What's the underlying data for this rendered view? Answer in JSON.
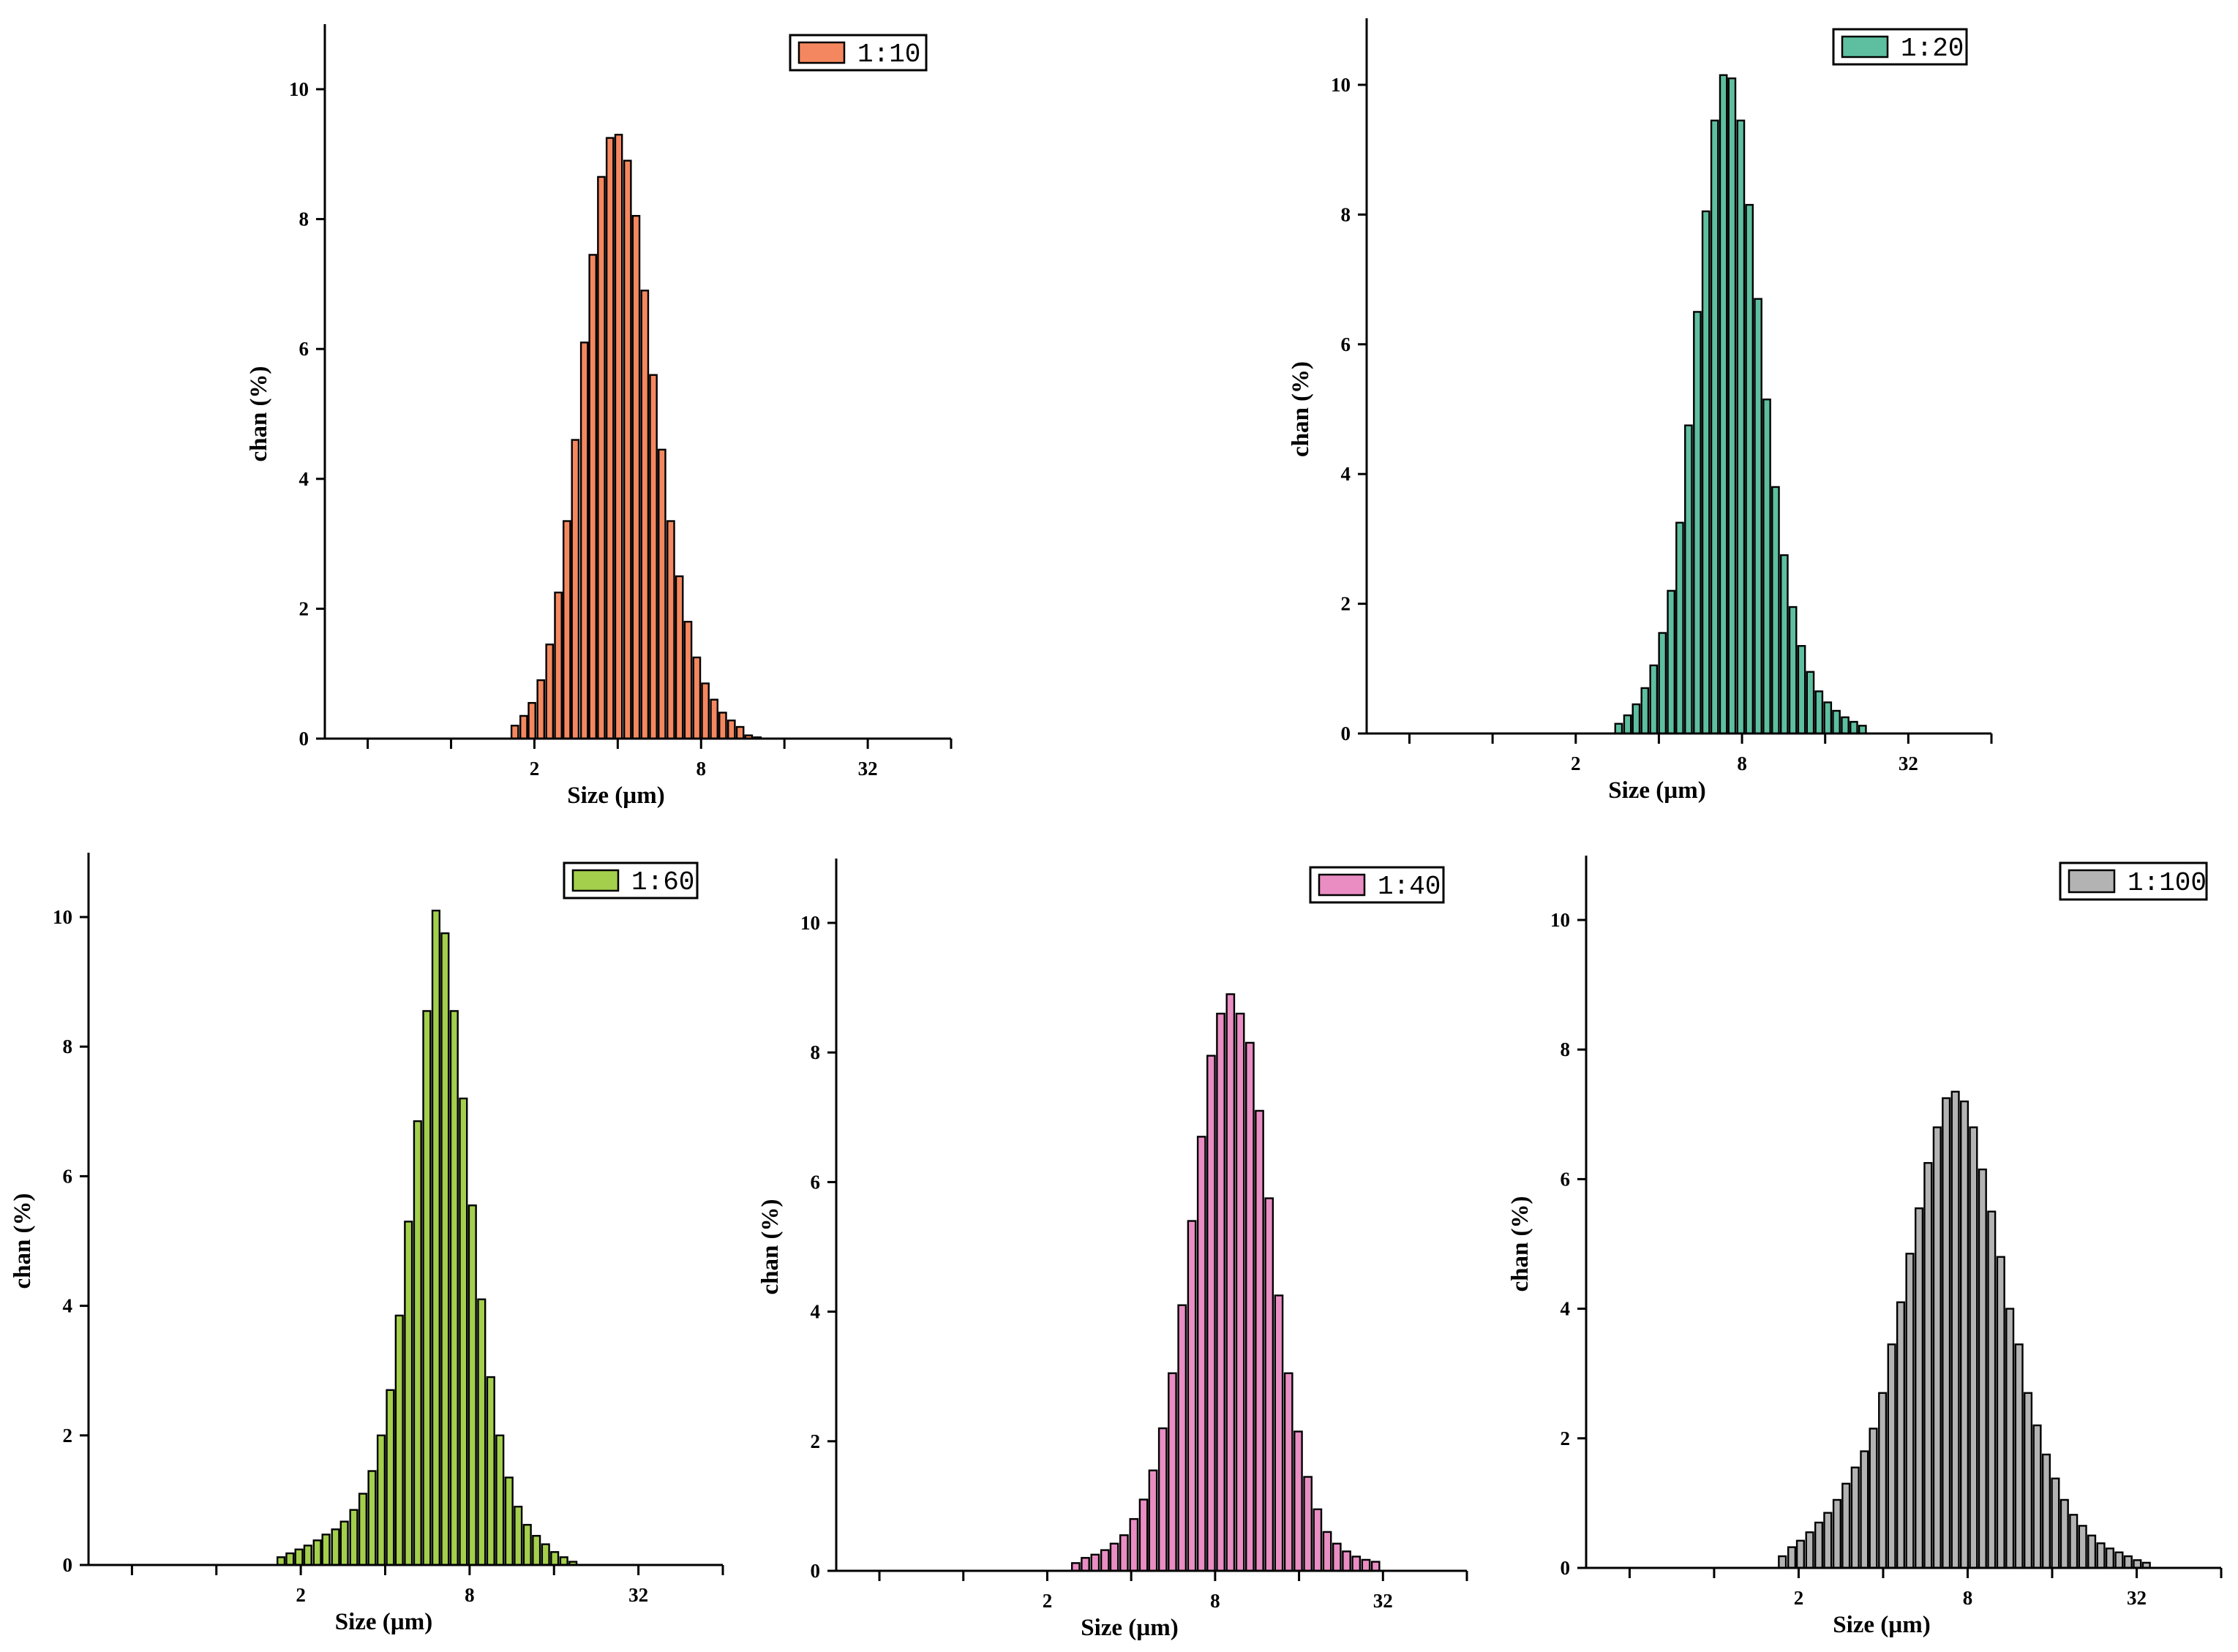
{
  "chart_data": [
    {
      "type": "bar",
      "legend": "1:10",
      "color": "#F4875F",
      "xlabel": "Size (µm)",
      "ylabel": "chan (%)",
      "x_scale": "log2",
      "xlim": [
        0.35,
        64
      ],
      "ylim": [
        0,
        11
      ],
      "x_ticks": [
        0.5,
        1,
        2,
        4,
        8,
        16,
        32,
        64
      ],
      "x_tick_labels": [
        "",
        "",
        "2",
        "",
        "8",
        "",
        "32",
        ""
      ],
      "y_ticks": [
        0,
        2,
        4,
        6,
        8,
        10
      ],
      "y_tick_labels": [
        "0",
        "2",
        "4",
        "6",
        "8",
        "10"
      ],
      "legend_position": "top-right",
      "sizes": [
        1.7,
        1.83,
        1.96,
        2.11,
        2.27,
        2.44,
        2.62,
        2.81,
        3.03,
        3.25,
        3.49,
        3.75,
        4.03,
        4.34,
        4.66,
        5.01,
        5.38,
        5.78,
        6.22,
        6.68,
        7.18,
        7.72,
        8.29,
        8.92,
        9.58,
        10.3,
        11.07,
        11.89,
        12.78,
        13.74,
        14.76,
        15.87
      ],
      "values": [
        0.2,
        0.35,
        0.55,
        0.9,
        1.45,
        2.25,
        3.35,
        4.6,
        6.1,
        7.45,
        8.65,
        9.25,
        9.3,
        8.9,
        8.05,
        6.9,
        5.6,
        4.45,
        3.35,
        2.5,
        1.8,
        1.25,
        0.85,
        0.6,
        0.4,
        0.28,
        0.18,
        0.05,
        0.02,
        0,
        0,
        0
      ]
    },
    {
      "type": "bar",
      "legend": "1:20",
      "color": "#5DBFA0",
      "xlabel": "Size (µm)",
      "ylabel": "chan (%)",
      "x_scale": "log2",
      "xlim": [
        0.35,
        64
      ],
      "ylim": [
        0,
        11
      ],
      "x_ticks": [
        0.5,
        1,
        2,
        4,
        8,
        16,
        32,
        64
      ],
      "x_tick_labels": [
        "",
        "",
        "2",
        "",
        "8",
        "",
        "32",
        ""
      ],
      "y_ticks": [
        0,
        2,
        4,
        6,
        8,
        10
      ],
      "y_tick_labels": [
        "0",
        "2",
        "4",
        "6",
        "8",
        "10"
      ],
      "legend_position": "top-right",
      "sizes": [
        2.86,
        3.08,
        3.31,
        3.56,
        3.83,
        4.12,
        4.43,
        4.76,
        5.12,
        5.51,
        5.92,
        6.37,
        6.85,
        7.36,
        7.92,
        8.51,
        9.15,
        9.84,
        10.58,
        11.38,
        12.23,
        13.15,
        14.14,
        15.2,
        16.35,
        17.57,
        18.9,
        20.32,
        21.85,
        23.49,
        25.25,
        27.15
      ],
      "values": [
        0.15,
        0.28,
        0.45,
        0.7,
        1.05,
        1.55,
        2.2,
        3.25,
        4.75,
        6.5,
        8.05,
        9.45,
        10.15,
        10.1,
        9.45,
        8.15,
        6.7,
        5.15,
        3.8,
        2.75,
        1.95,
        1.35,
        0.95,
        0.65,
        0.48,
        0.35,
        0.25,
        0.18,
        0.12,
        0,
        0,
        0
      ]
    },
    {
      "type": "bar",
      "legend": "1:60",
      "color": "#A3CF4C",
      "xlabel": "Size (µm)",
      "ylabel": "chan (%)",
      "x_scale": "log2",
      "xlim": [
        0.35,
        64
      ],
      "ylim": [
        0,
        11
      ],
      "x_ticks": [
        0.5,
        1,
        2,
        4,
        8,
        16,
        32,
        64
      ],
      "x_tick_labels": [
        "",
        "",
        "2",
        "",
        "8",
        "",
        "32",
        ""
      ],
      "y_ticks": [
        0,
        2,
        4,
        6,
        8,
        10
      ],
      "y_tick_labels": [
        "0",
        "2",
        "4",
        "6",
        "8",
        "10"
      ],
      "legend_position": "top-right",
      "sizes": [
        1.7,
        1.83,
        1.97,
        2.12,
        2.29,
        2.46,
        2.66,
        2.86,
        3.09,
        3.33,
        3.59,
        3.87,
        4.17,
        4.49,
        4.84,
        5.22,
        5.63,
        6.07,
        6.54,
        7.05,
        7.6,
        8.19,
        8.83,
        9.52,
        10.26,
        11.06,
        11.92,
        12.85,
        13.85,
        14.93,
        16.09,
        17.35,
        18.7,
        20.16,
        21.73,
        23.43,
        25.25,
        27.22,
        29.34,
        31.63
      ],
      "values": [
        0.12,
        0.18,
        0.24,
        0.3,
        0.38,
        0.47,
        0.55,
        0.67,
        0.85,
        1.1,
        1.45,
        2.0,
        2.7,
        3.85,
        5.3,
        6.85,
        8.55,
        10.1,
        9.75,
        8.55,
        7.2,
        5.55,
        4.1,
        2.9,
        2.0,
        1.35,
        0.9,
        0.62,
        0.45,
        0.32,
        0.2,
        0.12,
        0.05,
        0.0,
        0.0,
        0.0,
        0.0,
        0.0,
        0.0,
        0.0
      ]
    },
    {
      "type": "bar",
      "legend": "1:40",
      "color": "#E98DC3",
      "xlabel": "Size (µm)",
      "ylabel": "chan (%)",
      "x_scale": "log2",
      "xlim": [
        0.35,
        64
      ],
      "ylim": [
        0,
        11
      ],
      "x_ticks": [
        0.5,
        1,
        2,
        4,
        8,
        16,
        32,
        64
      ],
      "x_tick_labels": [
        "",
        "",
        "2",
        "",
        "8",
        "",
        "32",
        ""
      ],
      "y_ticks": [
        0,
        2,
        4,
        6,
        8,
        10
      ],
      "y_tick_labels": [
        "0",
        "2",
        "4",
        "6",
        "8",
        "10"
      ],
      "legend_position": "top-right",
      "sizes": [
        2.53,
        2.74,
        2.97,
        3.22,
        3.48,
        3.77,
        4.09,
        4.43,
        4.79,
        5.19,
        5.62,
        6.09,
        6.6,
        7.15,
        7.74,
        8.38,
        9.08,
        9.84,
        10.66,
        11.54,
        12.5,
        13.54,
        14.67,
        15.89,
        17.21,
        18.64,
        20.19,
        21.87,
        23.69,
        25.66,
        27.8,
        30.11,
        32.62,
        35.33,
        38.27,
        41.45
      ],
      "values": [
        0.12,
        0.2,
        0.25,
        0.32,
        0.42,
        0.55,
        0.8,
        1.1,
        1.55,
        2.2,
        3.05,
        4.1,
        5.4,
        6.7,
        7.95,
        8.6,
        8.9,
        8.6,
        8.15,
        7.1,
        5.75,
        4.25,
        3.05,
        2.15,
        1.45,
        0.95,
        0.6,
        0.42,
        0.3,
        0.22,
        0.17,
        0.14,
        0.0,
        0.0,
        0.0,
        0.0
      ]
    },
    {
      "type": "bar",
      "legend": "1:100",
      "color": "#B3B3B3",
      "xlabel": "Size (µm)",
      "ylabel": "chan (%)",
      "x_scale": "log2",
      "xlim": [
        0.35,
        64
      ],
      "ylim": [
        0,
        11
      ],
      "x_ticks": [
        0.5,
        1,
        2,
        4,
        8,
        16,
        32,
        64
      ],
      "x_tick_labels": [
        "",
        "",
        "2",
        "",
        "8",
        "",
        "32",
        ""
      ],
      "y_ticks": [
        0,
        2,
        4,
        6,
        8,
        10
      ],
      "y_tick_labels": [
        "0",
        "2",
        "4",
        "6",
        "8",
        "10"
      ],
      "legend_position": "top-right",
      "sizes": [
        1.75,
        1.89,
        2.03,
        2.19,
        2.36,
        2.54,
        2.74,
        2.95,
        3.18,
        3.43,
        3.69,
        3.98,
        4.29,
        4.62,
        4.98,
        5.37,
        5.78,
        6.23,
        6.71,
        7.23,
        7.79,
        8.39,
        9.04,
        9.74,
        10.5,
        11.31,
        12.19,
        13.13,
        14.15,
        15.25,
        16.43,
        17.7,
        19.07,
        20.55,
        22.14,
        23.86,
        25.7,
        27.7,
        29.84,
        32.16,
        34.65,
        37.33
      ],
      "values": [
        0.18,
        0.32,
        0.42,
        0.55,
        0.7,
        0.85,
        1.05,
        1.3,
        1.55,
        1.8,
        2.15,
        2.7,
        3.45,
        4.1,
        4.85,
        5.55,
        6.25,
        6.8,
        7.25,
        7.35,
        7.2,
        6.8,
        6.15,
        5.5,
        4.8,
        4.0,
        3.45,
        2.7,
        2.2,
        1.75,
        1.38,
        1.05,
        0.82,
        0.65,
        0.5,
        0.38,
        0.3,
        0.24,
        0.18,
        0.12,
        0.08,
        0.0
      ]
    }
  ]
}
